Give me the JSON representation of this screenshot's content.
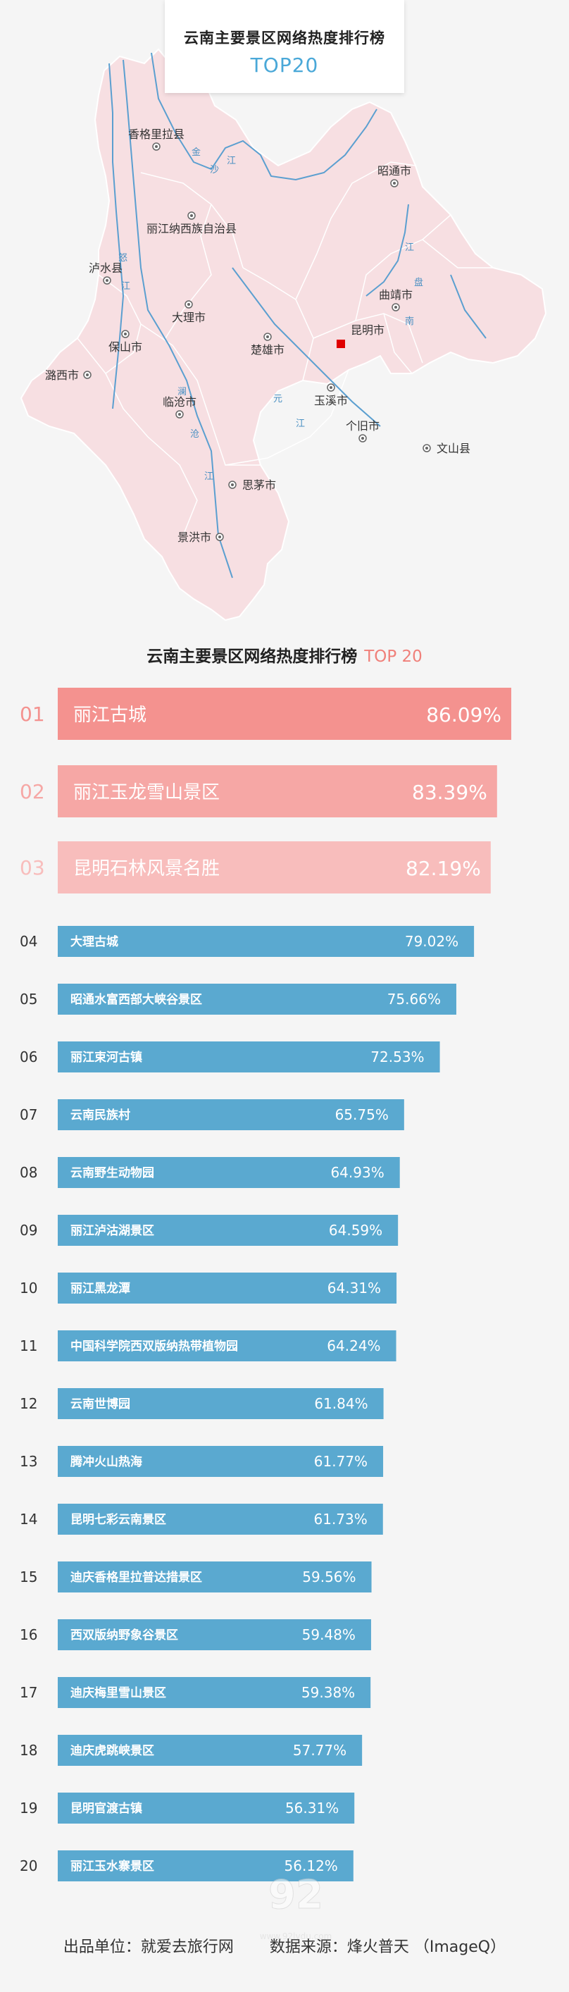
{
  "header": {
    "title": "云南主要景区网络热度排行榜",
    "subtitle": "TOP20"
  },
  "map": {
    "cities": [
      {
        "name": "香格里拉县"
      },
      {
        "name": "丽江纳西族自治县"
      },
      {
        "name": "昭通市"
      },
      {
        "name": "泸水县"
      },
      {
        "name": "大理市"
      },
      {
        "name": "昆明市"
      },
      {
        "name": "曲靖市"
      },
      {
        "name": "楚雄市"
      },
      {
        "name": "保山市"
      },
      {
        "name": "潞西市"
      },
      {
        "name": "玉溪市"
      },
      {
        "name": "临沧市"
      },
      {
        "name": "个旧市"
      },
      {
        "name": "文山县"
      },
      {
        "name": "思茅市"
      },
      {
        "name": "景洪市"
      }
    ],
    "rivers": [
      "金",
      "沙",
      "江",
      "怒",
      "江",
      "澜",
      "沧",
      "江",
      "元",
      "江",
      "南",
      "盘",
      "江"
    ],
    "colors": {
      "land": "#f7dfe2",
      "border": "#ffffff",
      "river": "#5b9fd0",
      "capital": "#e00000"
    }
  },
  "chart_title": {
    "main": "云南主要景区网络热度排行榜",
    "highlight": "TOP 20"
  },
  "chart_data": {
    "type": "bar",
    "title": "云南主要景区网络热度排行榜 TOP 20",
    "orientation": "horizontal",
    "xlim": [
      0,
      100
    ],
    "unit": "%",
    "colors": {
      "top1": "#f4928f",
      "top2": "#f6a7a5",
      "top3": "#f8bdbc",
      "rest": "#5aa9d0"
    },
    "items": [
      {
        "rank": "01",
        "name": "丽江古城",
        "value": 86.09,
        "label": "86.09%"
      },
      {
        "rank": "02",
        "name": "丽江玉龙雪山景区",
        "value": 83.39,
        "label": "83.39%"
      },
      {
        "rank": "03",
        "name": "昆明石林风景名胜",
        "value": 82.19,
        "label": "82.19%"
      },
      {
        "rank": "04",
        "name": "大理古城",
        "value": 79.02,
        "label": "79.02%"
      },
      {
        "rank": "05",
        "name": "昭通水富西部大峡谷景区",
        "value": 75.66,
        "label": "75.66%"
      },
      {
        "rank": "06",
        "name": "丽江束河古镇",
        "value": 72.53,
        "label": "72.53%"
      },
      {
        "rank": "07",
        "name": "云南民族村",
        "value": 65.75,
        "label": "65.75%"
      },
      {
        "rank": "08",
        "name": "云南野生动物园",
        "value": 64.93,
        "label": "64.93%"
      },
      {
        "rank": "09",
        "name": "丽江泸沽湖景区",
        "value": 64.59,
        "label": "64.59%"
      },
      {
        "rank": "10",
        "name": "丽江黑龙潭",
        "value": 64.31,
        "label": "64.31%"
      },
      {
        "rank": "11",
        "name": "中国科学院西双版纳热带植物园",
        "value": 64.24,
        "label": "64.24%"
      },
      {
        "rank": "12",
        "name": "云南世博园",
        "value": 61.84,
        "label": "61.84%"
      },
      {
        "rank": "13",
        "name": "腾冲火山热海",
        "value": 61.77,
        "label": "61.77%"
      },
      {
        "rank": "14",
        "name": "昆明七彩云南景区",
        "value": 61.73,
        "label": "61.73%"
      },
      {
        "rank": "15",
        "name": "迪庆香格里拉普达措景区",
        "value": 59.56,
        "label": "59.56%"
      },
      {
        "rank": "16",
        "name": "西双版纳野象谷景区",
        "value": 59.48,
        "label": "59.48%"
      },
      {
        "rank": "17",
        "name": "迪庆梅里雪山景区",
        "value": 59.38,
        "label": "59.38%"
      },
      {
        "rank": "18",
        "name": "迪庆虎跳峡景区",
        "value": 57.77,
        "label": "57.77%"
      },
      {
        "rank": "19",
        "name": "昆明官渡古镇",
        "value": 56.31,
        "label": "56.31%"
      },
      {
        "rank": "20",
        "name": "丽江玉水寨景区",
        "value": 56.12,
        "label": "56.12%"
      }
    ]
  },
  "footer": {
    "publisher": "出品单位：就爱去旅行网",
    "source": "数据来源：烽火普天 （ImageQ）"
  },
  "watermark": {
    "text": "www.92lvdu.com"
  }
}
